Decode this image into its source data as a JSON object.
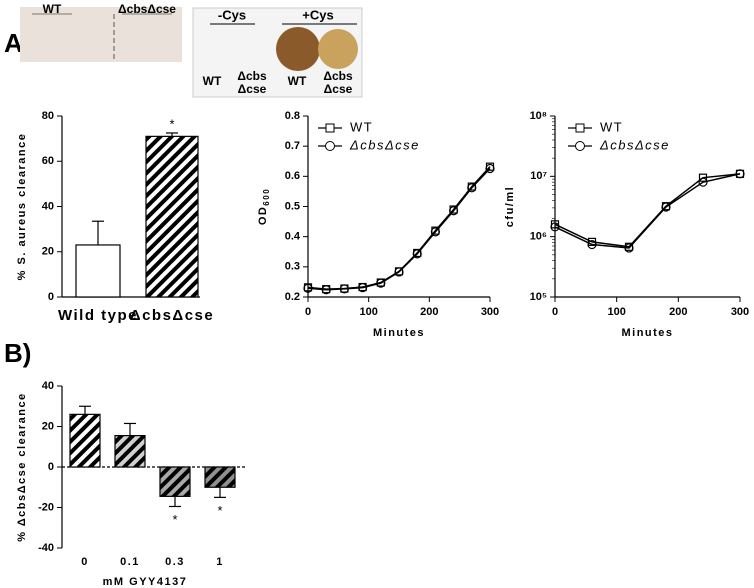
{
  "panel_labels": [
    "A)",
    "B)"
  ],
  "photo_labels": {
    "left": [
      "WT",
      "ΔcbsΔcse"
    ],
    "right_top": [
      "-Cys",
      "+Cys"
    ],
    "right_bottom": [
      "WT",
      "Δcbs",
      "Δcse",
      "WT",
      "Δcbs",
      "Δcse"
    ]
  },
  "chart_data": [
    {
      "type": "bar",
      "ylabel": "% S. aureus clearance",
      "categories": [
        "Wild type",
        "ΔcbsΔcse"
      ],
      "values": [
        23,
        71
      ],
      "errors": [
        10.5,
        1.5
      ],
      "colors": [
        "#ffffff",
        "#ffffff"
      ],
      "hatch": [
        false,
        true
      ],
      "ylim": [
        0,
        80
      ],
      "yticks": [
        0,
        20,
        40,
        60,
        80
      ],
      "annotations": [
        "*"
      ]
    },
    {
      "type": "line",
      "ylabel": "OD",
      "ylabel_sub": "600",
      "xlabel": "Minutes",
      "x": [
        0,
        30,
        60,
        90,
        120,
        150,
        180,
        210,
        240,
        270,
        300
      ],
      "series": [
        {
          "name": "WT",
          "color": "#000000",
          "marker": "square",
          "values": [
            0.232,
            0.226,
            0.228,
            0.233,
            0.248,
            0.285,
            0.346,
            0.42,
            0.49,
            0.566,
            0.632
          ]
        },
        {
          "name": "ΔcbsΔcse",
          "color": "#000000",
          "marker": "circle",
          "values": [
            0.229,
            0.224,
            0.227,
            0.231,
            0.246,
            0.283,
            0.343,
            0.416,
            0.486,
            0.562,
            0.626
          ]
        }
      ],
      "xlim": [
        0,
        300
      ],
      "xticks": [
        0,
        100,
        200,
        300
      ],
      "ylim": [
        0.2,
        0.8
      ],
      "yticks": [
        0.2,
        0.3,
        0.4,
        0.5,
        0.6,
        0.7,
        0.8
      ]
    },
    {
      "type": "line",
      "ylabel": "cfu/ml",
      "xlabel": "Minutes",
      "log_y": true,
      "x": [
        0,
        60,
        120,
        180,
        240,
        300
      ],
      "series": [
        {
          "name": "WT",
          "color": "#000000",
          "marker": "square",
          "values": [
            1600000,
            820000,
            680000,
            3200000,
            9500000,
            11000000
          ]
        },
        {
          "name": "ΔcbsΔcse",
          "color": "#000000",
          "marker": "circle",
          "values": [
            1450000,
            740000,
            650000,
            3100000,
            8000000,
            11000000
          ]
        }
      ],
      "xlim": [
        0,
        300
      ],
      "xticks": [
        0,
        100,
        200,
        300
      ],
      "ylim": [
        100000,
        100000000
      ],
      "yticks": [
        {
          "value": 100000,
          "label": "10⁵"
        },
        {
          "value": 1000000,
          "label": "10⁶"
        },
        {
          "value": 10000000,
          "label": "10⁷"
        },
        {
          "value": 100000000,
          "label": "10⁸"
        }
      ]
    },
    {
      "type": "bar",
      "ylabel": "% ΔcbsΔcse clearance",
      "xlabel": "mM GYY4137",
      "categories": [
        "0",
        "0.1",
        "0.3",
        "1"
      ],
      "values": [
        26,
        15.5,
        -14.5,
        -10
      ],
      "errors": [
        4,
        6,
        5,
        5
      ],
      "colors": [
        "#ffffff",
        "#d0d0d0",
        "#a8a8a8",
        "#909090"
      ],
      "hatch": [
        true,
        true,
        true,
        true
      ],
      "ylim": [
        -40,
        40
      ],
      "yticks": [
        -40,
        -20,
        0,
        20,
        40
      ],
      "annotations": [
        "*",
        "*"
      ]
    }
  ]
}
